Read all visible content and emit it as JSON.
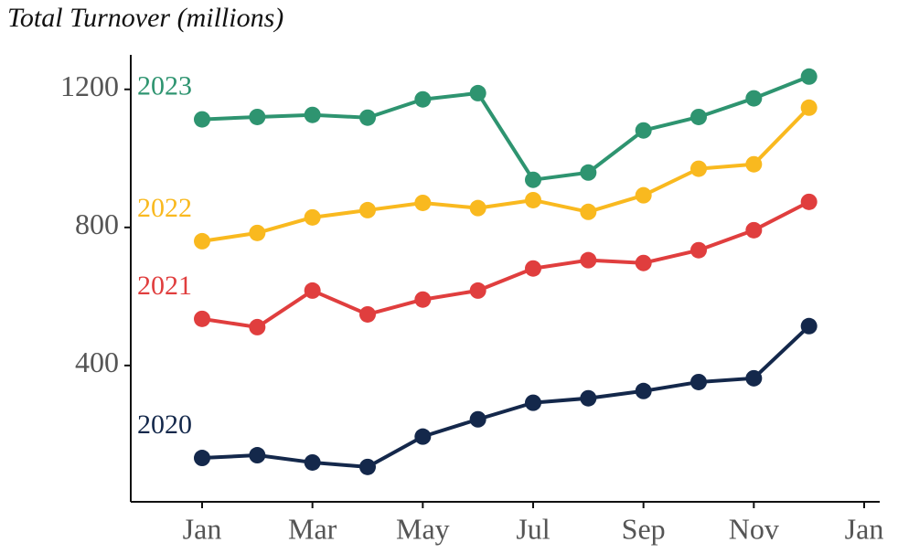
{
  "chart_data": {
    "type": "line",
    "title": "Total Turnover (millions)",
    "categories": [
      "Jan",
      null,
      "Mar",
      null,
      "May",
      null,
      "Jul",
      null,
      "Sep",
      null,
      "Nov",
      null,
      "Jan"
    ],
    "series": [
      {
        "name": "2020",
        "color": "#14284b",
        "values": [
          132,
          140,
          119,
          106,
          194,
          244,
          292,
          305,
          326,
          352,
          363,
          514,
          null
        ]
      },
      {
        "name": "2021",
        "color": "#e03e3e",
        "values": [
          535,
          511,
          617,
          548,
          591,
          617,
          681,
          705,
          697,
          734,
          792,
          874,
          null
        ]
      },
      {
        "name": "2022",
        "color": "#f9b91f",
        "values": [
          760,
          784,
          829,
          850,
          871,
          856,
          879,
          845,
          893,
          970,
          983,
          1147,
          null
        ]
      },
      {
        "name": "2023",
        "color": "#2e9470",
        "values": [
          1113,
          1120,
          1126,
          1118,
          1171,
          1189,
          938,
          959,
          1081,
          1120,
          1174,
          1237,
          null
        ]
      }
    ],
    "ylim": [
      5,
      1300
    ],
    "yticks": [
      400,
      800,
      1200
    ],
    "grid": false,
    "legend": "inline-left"
  }
}
